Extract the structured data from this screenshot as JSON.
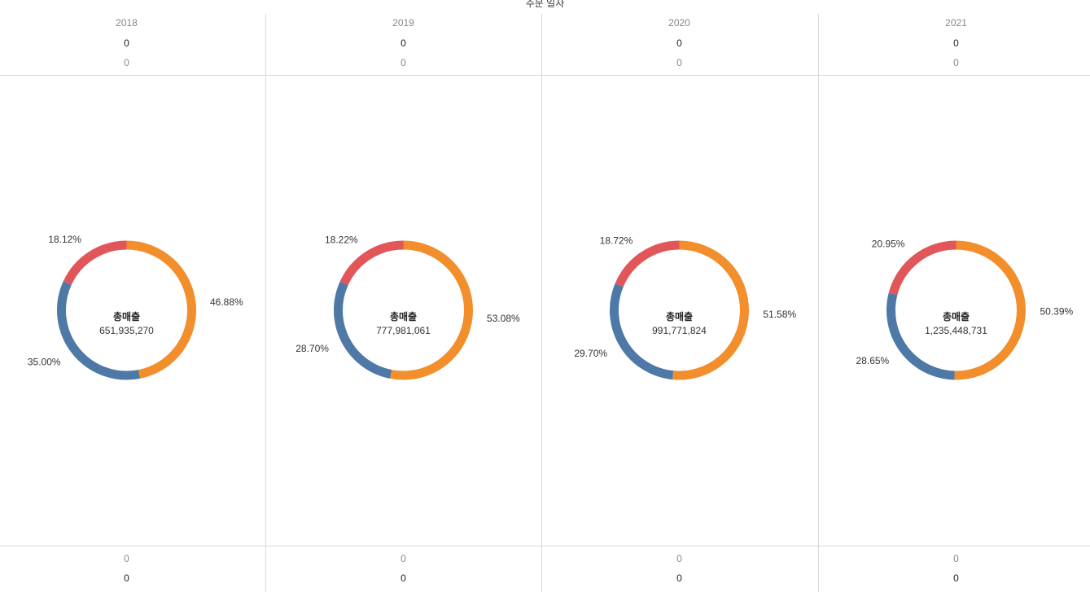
{
  "header": {
    "title": "주문 일자"
  },
  "colors": {
    "orange": "#f28e2b",
    "blue": "#4e79a7",
    "red": "#e15759"
  },
  "chart_data": {
    "type": "pie",
    "donut": true,
    "panels": [
      {
        "year": "2018",
        "top_bold": "0",
        "top_gray": "0",
        "bottom_gray": "0",
        "bottom_bold": "0",
        "center_label": "총매출",
        "center_value": "651,935,270",
        "slices": [
          {
            "value": 46.88,
            "label": "46.88%",
            "color": "#f28e2b"
          },
          {
            "value": 35.0,
            "label": "35.00%",
            "color": "#4e79a7"
          },
          {
            "value": 18.12,
            "label": "18.12%",
            "color": "#e15759"
          }
        ]
      },
      {
        "year": "2019",
        "top_bold": "0",
        "top_gray": "0",
        "bottom_gray": "0",
        "bottom_bold": "0",
        "center_label": "총매출",
        "center_value": "777,981,061",
        "slices": [
          {
            "value": 53.08,
            "label": "53.08%",
            "color": "#f28e2b"
          },
          {
            "value": 28.7,
            "label": "28.70%",
            "color": "#4e79a7"
          },
          {
            "value": 18.22,
            "label": "18.22%",
            "color": "#e15759"
          }
        ]
      },
      {
        "year": "2020",
        "top_bold": "0",
        "top_gray": "0",
        "bottom_gray": "0",
        "bottom_bold": "0",
        "center_label": "총매출",
        "center_value": "991,771,824",
        "slices": [
          {
            "value": 51.58,
            "label": "51.58%",
            "color": "#f28e2b"
          },
          {
            "value": 29.7,
            "label": "29.70%",
            "color": "#4e79a7"
          },
          {
            "value": 18.72,
            "label": "18.72%",
            "color": "#e15759"
          }
        ]
      },
      {
        "year": "2021",
        "top_bold": "0",
        "top_gray": "0",
        "bottom_gray": "0",
        "bottom_bold": "0",
        "center_label": "총매출",
        "center_value": "1,235,448,731",
        "slices": [
          {
            "value": 50.39,
            "label": "50.39%",
            "color": "#f28e2b"
          },
          {
            "value": 28.65,
            "label": "28.65%",
            "color": "#4e79a7"
          },
          {
            "value": 20.95,
            "label": "20.95%",
            "color": "#e15759"
          }
        ]
      }
    ]
  }
}
